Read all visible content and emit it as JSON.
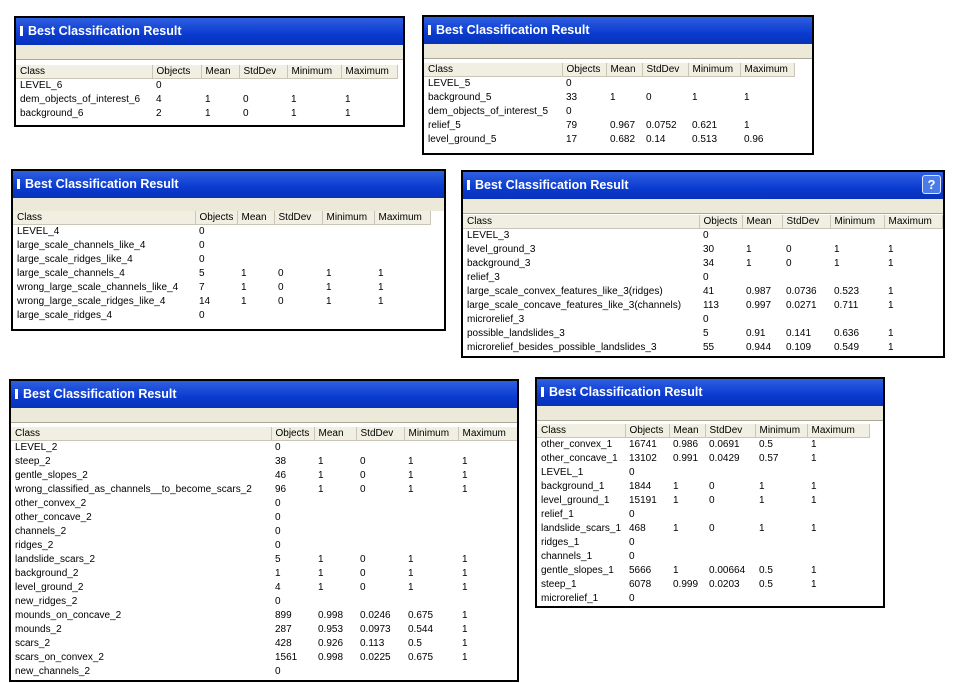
{
  "columns": [
    "Class",
    "Objects",
    "Mean",
    "StdDev",
    "Minimum",
    "Maximum"
  ],
  "help_glyph": "?",
  "windows": [
    {
      "title": "Best Classification Result",
      "rows": [
        [
          "LEVEL_6",
          "0",
          "",
          "",
          "",
          ""
        ],
        [
          "dem_objects_of_interest_6",
          "4",
          "1",
          "0",
          "1",
          "1"
        ],
        [
          "background_6",
          "2",
          "1",
          "0",
          "1",
          "1"
        ]
      ]
    },
    {
      "title": "Best Classification Result",
      "rows": [
        [
          "LEVEL_5",
          "0",
          "",
          "",
          "",
          ""
        ],
        [
          "background_5",
          "33",
          "1",
          "0",
          "1",
          "1"
        ],
        [
          "dem_objects_of_interest_5",
          "0",
          "",
          "",
          "",
          ""
        ],
        [
          "relief_5",
          "79",
          "0.967",
          "0.0752",
          "0.621",
          "1"
        ],
        [
          "level_ground_5",
          "17",
          "0.682",
          "0.14",
          "0.513",
          "0.96"
        ]
      ]
    },
    {
      "title": "Best Classification Result",
      "rows": [
        [
          "LEVEL_4",
          "0",
          "",
          "",
          "",
          ""
        ],
        [
          "large_scale_channels_like_4",
          "0",
          "",
          "",
          "",
          ""
        ],
        [
          "large_scale_ridges_like_4",
          "0",
          "",
          "",
          "",
          ""
        ],
        [
          "large_scale_channels_4",
          "5",
          "1",
          "0",
          "1",
          "1"
        ],
        [
          "wrong_large_scale_channels_like_4",
          "7",
          "1",
          "0",
          "1",
          "1"
        ],
        [
          "wrong_large_scale_ridges_like_4",
          "14",
          "1",
          "0",
          "1",
          "1"
        ],
        [
          "large_scale_ridges_4",
          "0",
          "",
          "",
          "",
          ""
        ]
      ]
    },
    {
      "title": "Best Classification Result",
      "rows": [
        [
          "LEVEL_3",
          "0",
          "",
          "",
          "",
          ""
        ],
        [
          "level_ground_3",
          "30",
          "1",
          "0",
          "1",
          "1"
        ],
        [
          "background_3",
          "34",
          "1",
          "0",
          "1",
          "1"
        ],
        [
          "relief_3",
          "0",
          "",
          "",
          "",
          ""
        ],
        [
          "large_scale_convex_features_like_3(ridges)",
          "41",
          "0.987",
          "0.0736",
          "0.523",
          "1"
        ],
        [
          "large_scale_concave_features_like_3(channels)",
          "113",
          "0.997",
          "0.0271",
          "0.711",
          "1"
        ],
        [
          "microrelief_3",
          "0",
          "",
          "",
          "",
          ""
        ],
        [
          "possible_landslides_3",
          "5",
          "0.91",
          "0.141",
          "0.636",
          "1"
        ],
        [
          "microrelief_besides_possible_landslides_3",
          "55",
          "0.944",
          "0.109",
          "0.549",
          "1"
        ]
      ]
    },
    {
      "title": "Best Classification Result",
      "rows": [
        [
          "LEVEL_2",
          "0",
          "",
          "",
          "",
          ""
        ],
        [
          "steep_2",
          "38",
          "1",
          "0",
          "1",
          "1"
        ],
        [
          "gentle_slopes_2",
          "46",
          "1",
          "0",
          "1",
          "1"
        ],
        [
          "wrong_classified_as_channels__to_become_scars_2",
          "96",
          "1",
          "0",
          "1",
          "1"
        ],
        [
          "other_convex_2",
          "0",
          "",
          "",
          "",
          ""
        ],
        [
          "other_concave_2",
          "0",
          "",
          "",
          "",
          ""
        ],
        [
          "channels_2",
          "0",
          "",
          "",
          "",
          ""
        ],
        [
          "ridges_2",
          "0",
          "",
          "",
          "",
          ""
        ],
        [
          "landslide_scars_2",
          "5",
          "1",
          "0",
          "1",
          "1"
        ],
        [
          "background_2",
          "1",
          "1",
          "0",
          "1",
          "1"
        ],
        [
          "level_ground_2",
          "4",
          "1",
          "0",
          "1",
          "1"
        ],
        [
          "new_ridges_2",
          "0",
          "",
          "",
          "",
          ""
        ],
        [
          "mounds_on_concave_2",
          "899",
          "0.998",
          "0.0246",
          "0.675",
          "1"
        ],
        [
          "mounds_2",
          "287",
          "0.953",
          "0.0973",
          "0.544",
          "1"
        ],
        [
          "scars_2",
          "428",
          "0.926",
          "0.113",
          "0.5",
          "1"
        ],
        [
          "scars_on_convex_2",
          "1561",
          "0.998",
          "0.0225",
          "0.675",
          "1"
        ],
        [
          "new_channels_2",
          "0",
          "",
          "",
          "",
          ""
        ]
      ]
    },
    {
      "title": "Best Classification Result",
      "rows": [
        [
          "other_convex_1",
          "16741",
          "0.986",
          "0.0691",
          "0.5",
          "1"
        ],
        [
          "other_concave_1",
          "13102",
          "0.991",
          "0.0429",
          "0.57",
          "1"
        ],
        [
          "LEVEL_1",
          "0",
          "",
          "",
          "",
          ""
        ],
        [
          "background_1",
          "1844",
          "1",
          "0",
          "1",
          "1"
        ],
        [
          "level_ground_1",
          "15191",
          "1",
          "0",
          "1",
          "1"
        ],
        [
          "relief_1",
          "0",
          "",
          "",
          "",
          ""
        ],
        [
          "landslide_scars_1",
          "468",
          "1",
          "0",
          "1",
          "1"
        ],
        [
          "ridges_1",
          "0",
          "",
          "",
          "",
          ""
        ],
        [
          "channels_1",
          "0",
          "",
          "",
          "",
          ""
        ],
        [
          "gentle_slopes_1",
          "5666",
          "1",
          "0.00664",
          "0.5",
          "1"
        ],
        [
          "steep_1",
          "6078",
          "0.999",
          "0.0203",
          "0.5",
          "1"
        ],
        [
          "microrelief_1",
          "0",
          "",
          "",
          "",
          ""
        ]
      ]
    }
  ]
}
